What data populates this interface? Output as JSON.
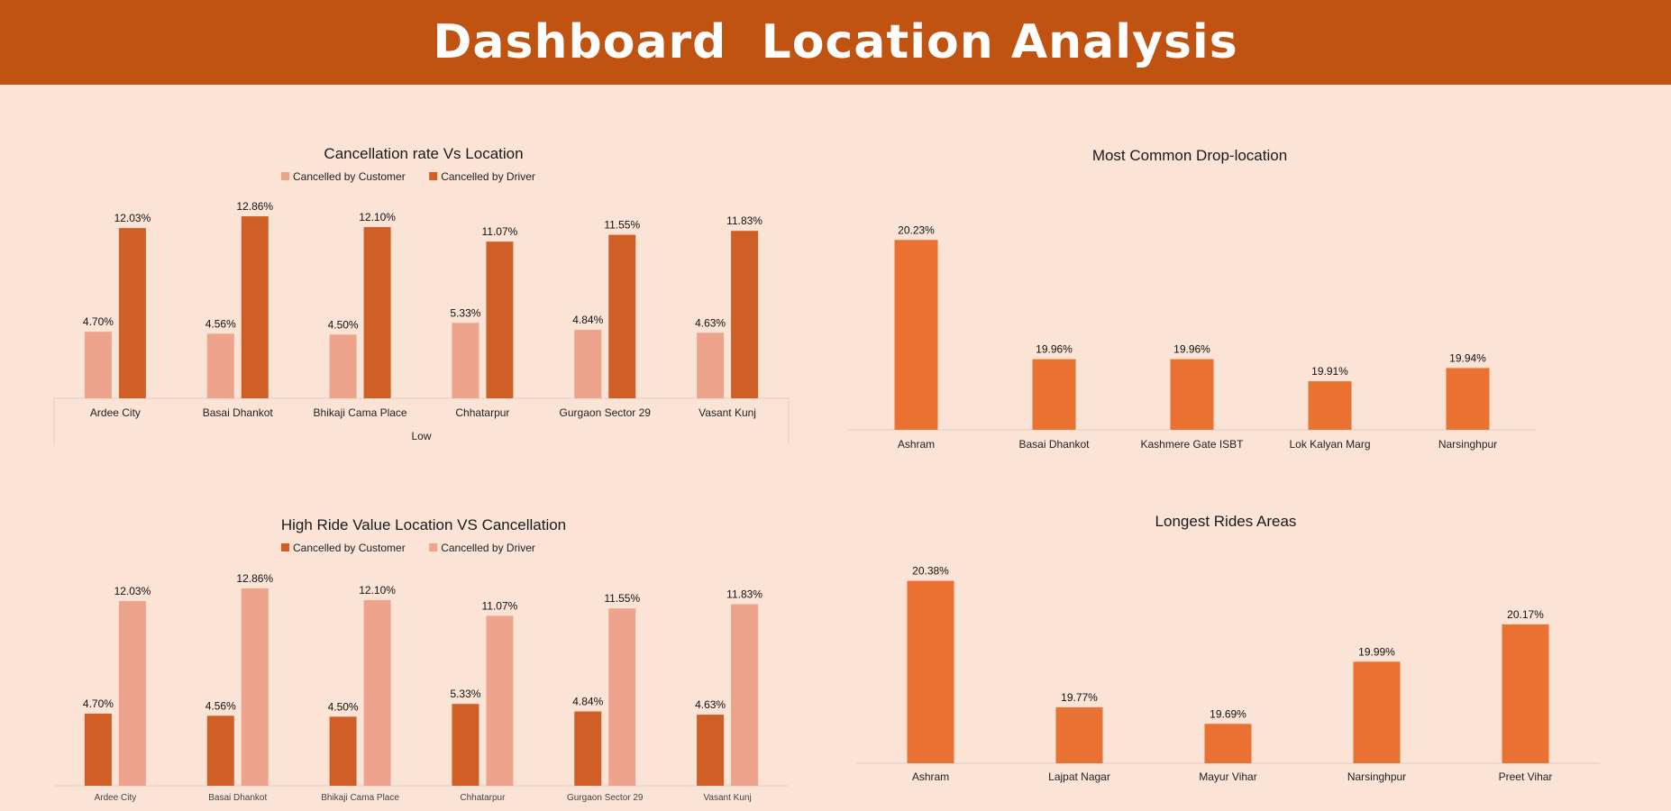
{
  "header": {
    "title": "Dashboard  Location Analysis"
  },
  "colors": {
    "banner": "#c05212",
    "background": "#fbe3d6",
    "dark_orange": "#cf5f26",
    "light_salmon": "#eea38c",
    "orange": "#e97132"
  },
  "chart_data": [
    {
      "id": "cancellation_rate",
      "type": "bar",
      "title": "Cancellation rate Vs Location",
      "xlabel": "Low",
      "legend_position": "top",
      "categories": [
        "Ardee City",
        "Basai Dhankot",
        "Bhikaji Cama Place",
        "Chhatarpur",
        "Gurgaon Sector 29",
        "Vasant Kunj"
      ],
      "series": [
        {
          "name": "Cancelled by Customer",
          "color": "#eea38c",
          "values": [
            4.7,
            4.56,
            4.5,
            5.33,
            4.84,
            4.63
          ],
          "labels": [
            "4.70%",
            "4.56%",
            "4.50%",
            "5.33%",
            "4.84%",
            "4.63%"
          ]
        },
        {
          "name": "Cancelled by Driver",
          "color": "#cf5f26",
          "values": [
            12.03,
            12.86,
            12.1,
            11.07,
            11.55,
            11.83
          ],
          "labels": [
            "12.03%",
            "12.86%",
            "12.10%",
            "11.07%",
            "11.55%",
            "11.83%"
          ]
        }
      ],
      "ylim": [
        0,
        13.5
      ]
    },
    {
      "id": "drop_location",
      "type": "bar",
      "title": "Most Common Drop-location",
      "categories": [
        "Ashram",
        "Basai Dhankot",
        "Kashmere Gate ISBT",
        "Lok Kalyan Marg",
        "Narsinghpur"
      ],
      "series": [
        {
          "color": "#e97132",
          "values": [
            20.23,
            19.96,
            19.96,
            19.91,
            19.94
          ],
          "labels": [
            "20.23%",
            "19.96%",
            "19.96%",
            "19.91%",
            "19.94%"
          ]
        }
      ],
      "ylim": [
        19.8,
        20.3
      ]
    },
    {
      "id": "high_ride_value",
      "type": "bar",
      "title": "High Ride Value Location  VS Cancellation",
      "legend_position": "top",
      "categories": [
        "Ardee City",
        "Basai Dhankot",
        "Bhikaji Cama Place",
        "Chhatarpur",
        "Gurgaon Sector 29",
        "Vasant Kunj"
      ],
      "series": [
        {
          "name": "Cancelled by Customer",
          "color": "#cf5f26",
          "values": [
            4.7,
            4.56,
            4.5,
            5.33,
            4.84,
            4.63
          ],
          "labels": [
            "4.70%",
            "4.56%",
            "4.50%",
            "5.33%",
            "4.84%",
            "4.63%"
          ]
        },
        {
          "name": "Cancelled by Driver",
          "color": "#eea38c",
          "values": [
            12.03,
            12.86,
            12.1,
            11.07,
            11.55,
            11.83
          ],
          "labels": [
            "12.03%",
            "12.86%",
            "12.10%",
            "11.07%",
            "11.55%",
            "11.83%"
          ]
        }
      ],
      "ylim": [
        0,
        13.5
      ]
    },
    {
      "id": "longest_rides",
      "type": "bar",
      "title": "Longest Rides Areas",
      "categories": [
        "Ashram",
        "Lajpat Nagar",
        "Mayur Vihar",
        "Narsinghpur",
        "Preet Vihar"
      ],
      "series": [
        {
          "color": "#e97132",
          "values": [
            20.38,
            19.77,
            19.69,
            19.99,
            20.17
          ],
          "labels": [
            "20.38%",
            "19.77%",
            "19.69%",
            "19.99%",
            "20.17%"
          ]
        }
      ],
      "ylim": [
        19.5,
        20.4
      ]
    }
  ]
}
